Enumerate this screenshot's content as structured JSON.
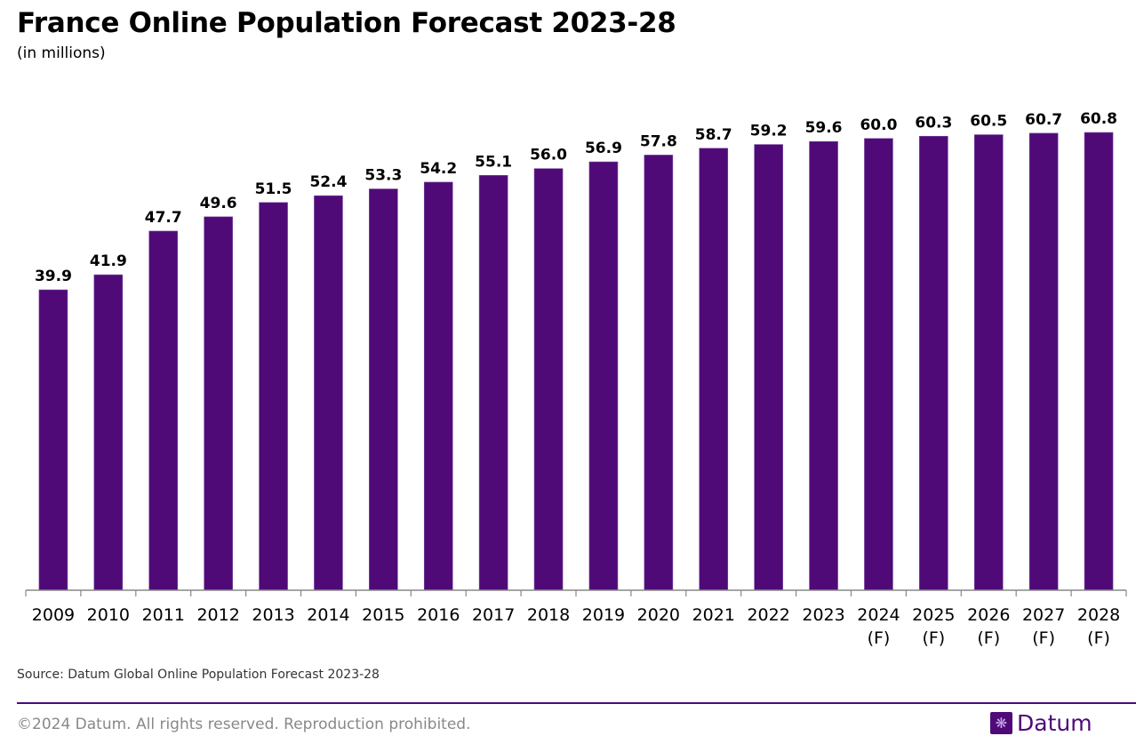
{
  "chart_data": {
    "type": "bar",
    "title": "France Online Population Forecast 2023-28",
    "subtitle": "(in millions)",
    "categories": [
      "2009",
      "2010",
      "2011",
      "2012",
      "2013",
      "2014",
      "2015",
      "2016",
      "2017",
      "2018",
      "2019",
      "2020",
      "2021",
      "2022",
      "2023",
      "2024\n(F)",
      "2025\n(F)",
      "2026\n(F)",
      "2027\n(F)",
      "2028\n(F)"
    ],
    "values": [
      39.9,
      41.9,
      47.7,
      49.6,
      51.5,
      52.4,
      53.3,
      54.2,
      55.1,
      56.0,
      56.9,
      57.8,
      58.7,
      59.2,
      59.6,
      60.0,
      60.3,
      60.5,
      60.7,
      60.8
    ],
    "data_labels": [
      "39.9",
      "41.9",
      "47.7",
      "49.6",
      "51.5",
      "52.4",
      "53.3",
      "54.2",
      "55.1",
      "56.0",
      "56.9",
      "57.8",
      "58.7",
      "59.2",
      "59.6",
      "60.0",
      "60.3",
      "60.5",
      "60.7",
      "60.8"
    ],
    "xlabel": "",
    "ylabel": "",
    "ylim": [
      0,
      70
    ],
    "grid": false,
    "bar_color": "#4f0a78"
  },
  "source": "Source: Datum Global Online Population Forecast 2023-28",
  "footer": {
    "copyright": "©2024 Datum. All rights reserved. Reproduction prohibited.",
    "logo_text": "Datum",
    "brand_color": "#4f0a78"
  }
}
